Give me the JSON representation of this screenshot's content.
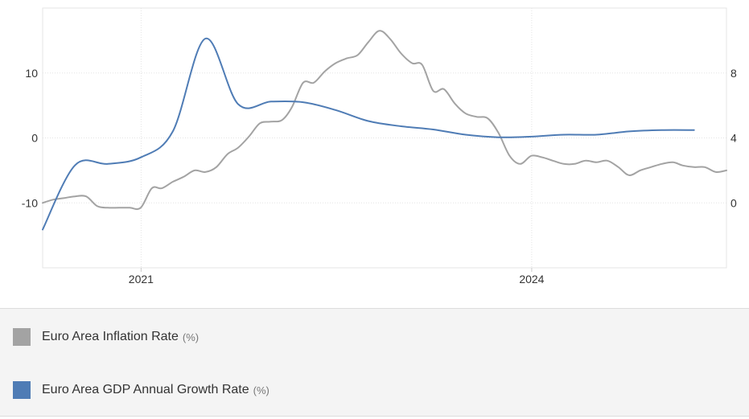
{
  "chart_data": {
    "type": "line",
    "title": "",
    "xlabel": "",
    "x_ticks": [
      "2021",
      "2024"
    ],
    "x_range": [
      "2020-03-31",
      "2025-06-30"
    ],
    "y_left": {
      "ticks": [
        "10",
        "0",
        "-10"
      ],
      "range": [
        -20,
        20
      ]
    },
    "y_right": {
      "ticks": [
        "8",
        "4",
        "0"
      ],
      "range": [
        -4,
        12
      ]
    },
    "grid": true,
    "legend_placement": "bottom",
    "series": [
      {
        "name": "Euro Area Inflation Rate",
        "unit": "(%)",
        "axis": "right",
        "color": "#a3a3a3",
        "x": [
          "2020-03-31",
          "2020-04-30",
          "2020-05-31",
          "2020-06-30",
          "2020-07-31",
          "2020-08-31",
          "2020-09-30",
          "2020-10-31",
          "2020-11-30",
          "2020-12-31",
          "2021-01-31",
          "2021-02-28",
          "2021-03-31",
          "2021-04-30",
          "2021-05-31",
          "2021-06-30",
          "2021-07-31",
          "2021-08-31",
          "2021-09-30",
          "2021-10-31",
          "2021-11-30",
          "2021-12-31",
          "2022-01-31",
          "2022-02-28",
          "2022-03-31",
          "2022-04-30",
          "2022-05-31",
          "2022-06-30",
          "2022-07-31",
          "2022-08-31",
          "2022-09-30",
          "2022-10-31",
          "2022-11-30",
          "2022-12-31",
          "2023-01-31",
          "2023-02-28",
          "2023-03-31",
          "2023-04-30",
          "2023-05-31",
          "2023-06-30",
          "2023-07-31",
          "2023-08-31",
          "2023-09-30",
          "2023-10-31",
          "2023-11-30",
          "2023-12-31",
          "2024-01-31",
          "2024-02-29",
          "2024-03-31",
          "2024-04-30",
          "2024-05-31",
          "2024-06-30",
          "2024-07-31",
          "2024-08-31",
          "2024-09-30",
          "2024-10-31",
          "2024-11-30",
          "2024-12-31",
          "2025-01-31",
          "2025-02-28",
          "2025-03-31",
          "2025-04-30",
          "2025-05-31",
          "2025-06-30"
        ],
        "values": [
          0.0,
          0.2,
          0.3,
          0.4,
          0.4,
          -0.2,
          -0.3,
          -0.3,
          -0.3,
          -0.3,
          0.9,
          0.9,
          1.3,
          1.6,
          2.0,
          1.9,
          2.2,
          3.0,
          3.4,
          4.1,
          4.9,
          5.0,
          5.1,
          5.9,
          7.4,
          7.4,
          8.1,
          8.6,
          8.9,
          9.1,
          9.9,
          10.6,
          10.1,
          9.2,
          8.6,
          8.5,
          6.9,
          7.0,
          6.1,
          5.5,
          5.3,
          5.2,
          4.3,
          2.9,
          2.4,
          2.9,
          2.8,
          2.6,
          2.4,
          2.4,
          2.6,
          2.5,
          2.6,
          2.2,
          1.7,
          2.0,
          2.2,
          2.4,
          2.5,
          2.3,
          2.2,
          2.2,
          1.9,
          2.0
        ]
      },
      {
        "name": "Euro Area GDP Annual Growth Rate",
        "unit": "(%)",
        "axis": "left",
        "color": "#4f7cb5",
        "x": [
          "2020-03-31",
          "2020-06-30",
          "2020-09-30",
          "2020-12-31",
          "2021-03-31",
          "2021-06-30",
          "2021-09-30",
          "2021-12-31",
          "2022-03-31",
          "2022-06-30",
          "2022-09-30",
          "2022-12-31",
          "2023-03-31",
          "2023-06-30",
          "2023-09-30",
          "2023-12-31",
          "2024-03-31",
          "2024-06-30",
          "2024-09-30",
          "2024-12-31",
          "2025-03-31"
        ],
        "values": [
          -14.1,
          -4.2,
          -4.0,
          -3.0,
          1.0,
          15.3,
          5.2,
          5.6,
          5.5,
          4.3,
          2.6,
          1.8,
          1.3,
          0.5,
          0.1,
          0.2,
          0.5,
          0.5,
          1.0,
          1.2,
          1.2
        ]
      }
    ]
  }
}
